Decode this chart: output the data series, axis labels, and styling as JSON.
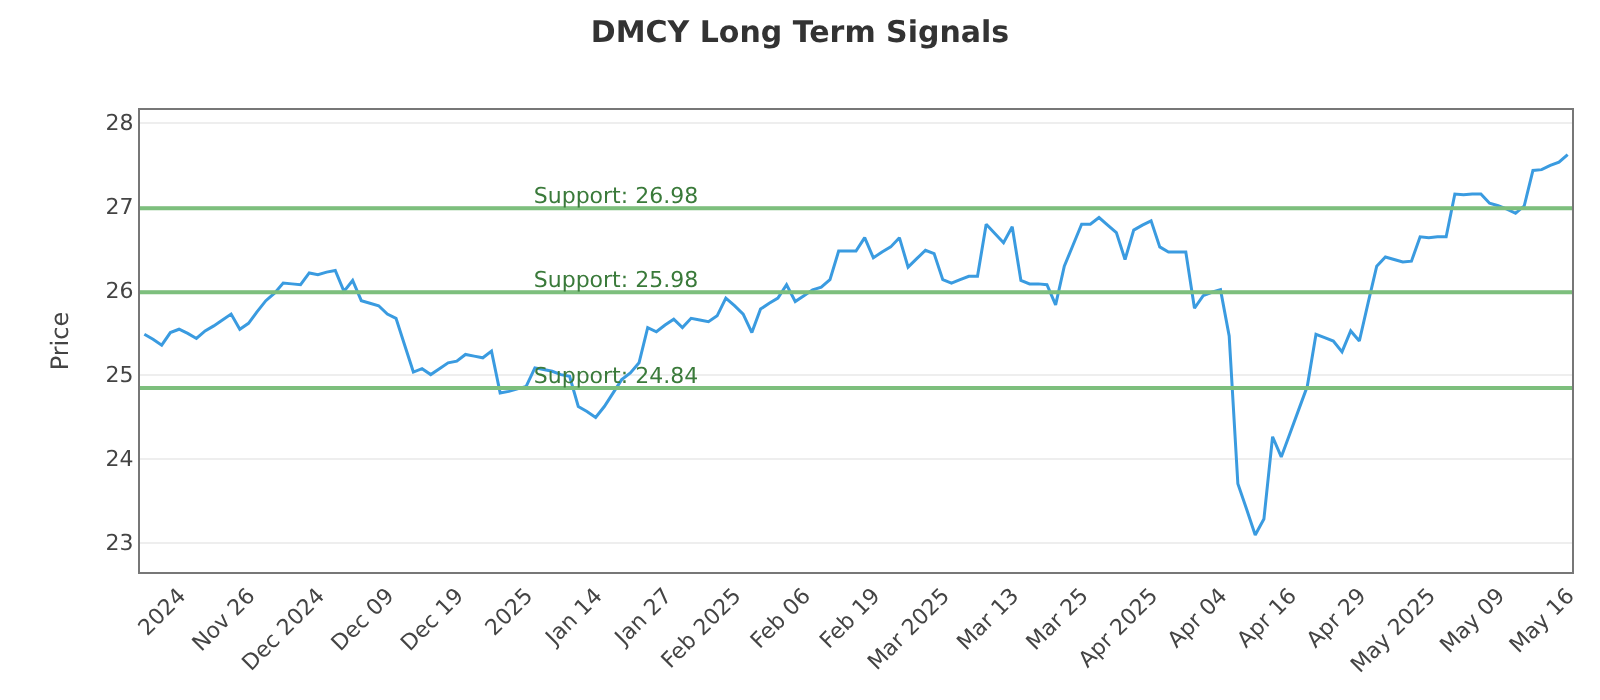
{
  "chart_data": {
    "type": "line",
    "title": "DMCY Long Term Signals",
    "ylabel": "Price",
    "ylim": [
      22.65,
      28.15
    ],
    "yticks": [
      23,
      24,
      25,
      26,
      27,
      28
    ],
    "categories": [
      null,
      null,
      null,
      null,
      "2024",
      null,
      null,
      null,
      null,
      null,
      null,
      null,
      "Nov 26",
      null,
      null,
      null,
      null,
      null,
      null,
      null,
      "Dec 2024",
      null,
      null,
      null,
      null,
      null,
      null,
      null,
      "Dec 09",
      null,
      null,
      null,
      null,
      null,
      null,
      null,
      "Dec 19",
      null,
      null,
      null,
      null,
      null,
      null,
      null,
      "2025",
      null,
      null,
      null,
      null,
      null,
      null,
      null,
      "Jan 14",
      null,
      null,
      null,
      null,
      null,
      null,
      null,
      "Jan 27",
      null,
      null,
      null,
      null,
      null,
      null,
      null,
      "Feb 2025",
      null,
      null,
      null,
      null,
      null,
      null,
      null,
      "Feb 06",
      null,
      null,
      null,
      null,
      null,
      null,
      null,
      "Feb 19",
      null,
      null,
      null,
      null,
      null,
      null,
      null,
      "Mar 2025",
      null,
      null,
      null,
      null,
      null,
      null,
      null,
      "Mar 13",
      null,
      null,
      null,
      null,
      null,
      null,
      null,
      "Mar 25",
      null,
      null,
      null,
      null,
      null,
      null,
      null,
      "Apr 2025",
      null,
      null,
      null,
      null,
      null,
      null,
      null,
      "Apr 04",
      null,
      null,
      null,
      null,
      null,
      null,
      null,
      "Apr 16",
      null,
      null,
      null,
      null,
      null,
      null,
      null,
      "Apr 29",
      null,
      null,
      null,
      null,
      null,
      null,
      null,
      "May 2025",
      null,
      null,
      null,
      null,
      null,
      null,
      null,
      "May 09",
      null,
      null,
      null,
      null,
      null,
      null,
      null,
      "May 16"
    ],
    "grid": "y",
    "marker": "none",
    "line_style": "solid",
    "series": [
      {
        "color": "#3a9be0",
        "values": [
          25.48,
          25.42,
          25.35,
          25.5,
          25.54,
          25.49,
          25.43,
          25.52,
          25.58,
          25.65,
          25.72,
          25.54,
          25.61,
          25.75,
          25.88,
          25.97,
          26.09,
          26.08,
          26.07,
          26.21,
          26.19,
          26.22,
          26.24,
          25.99,
          26.12,
          25.88,
          25.85,
          25.82,
          25.72,
          25.67,
          25.35,
          25.03,
          25.07,
          25.0,
          25.07,
          25.14,
          25.16,
          25.24,
          25.22,
          25.2,
          25.28,
          24.78,
          24.8,
          24.83,
          24.86,
          25.08,
          25.06,
          25.04,
          25.0,
          24.98,
          24.62,
          24.56,
          24.49,
          24.62,
          24.78,
          24.94,
          25.02,
          25.14,
          25.56,
          25.51,
          25.59,
          25.66,
          25.56,
          25.67,
          25.65,
          25.63,
          25.7,
          25.91,
          25.82,
          25.72,
          25.5,
          25.78,
          25.85,
          25.91,
          26.07,
          25.87,
          25.94,
          26.01,
          26.04,
          26.13,
          26.47,
          26.47,
          26.47,
          26.63,
          26.39,
          26.46,
          26.52,
          26.63,
          26.28,
          26.38,
          26.48,
          26.44,
          26.13,
          26.09,
          26.13,
          26.17,
          26.17,
          26.79,
          26.68,
          26.57,
          26.76,
          26.12,
          26.08,
          26.08,
          26.07,
          25.83,
          26.29,
          26.54,
          26.79,
          26.79,
          26.87,
          26.78,
          26.69,
          26.37,
          26.72,
          26.78,
          26.83,
          26.52,
          26.46,
          26.46,
          26.46,
          25.79,
          25.94,
          25.98,
          26.01,
          25.46,
          23.7,
          23.4,
          23.09,
          23.28,
          24.26,
          24.02,
          24.3,
          24.58,
          24.86,
          25.48,
          25.44,
          25.4,
          25.27,
          25.52,
          25.4,
          25.85,
          26.29,
          26.4,
          26.37,
          26.34,
          26.35,
          26.64,
          26.63,
          26.64,
          26.64,
          27.15,
          27.14,
          27.15,
          27.15,
          27.04,
          27.01,
          26.97,
          26.92,
          27.01,
          27.43,
          27.44,
          27.49,
          27.53,
          27.62
        ]
      }
    ],
    "ref_lines": [
      {
        "axis": "y",
        "value": 26.98,
        "label": "Support: 26.98",
        "color": "#7dbf7d"
      },
      {
        "axis": "y",
        "value": 25.98,
        "label": "Support: 25.98",
        "color": "#7dbf7d"
      },
      {
        "axis": "y",
        "value": 24.84,
        "label": "Support: 24.84",
        "color": "#7dbf7d"
      }
    ]
  }
}
